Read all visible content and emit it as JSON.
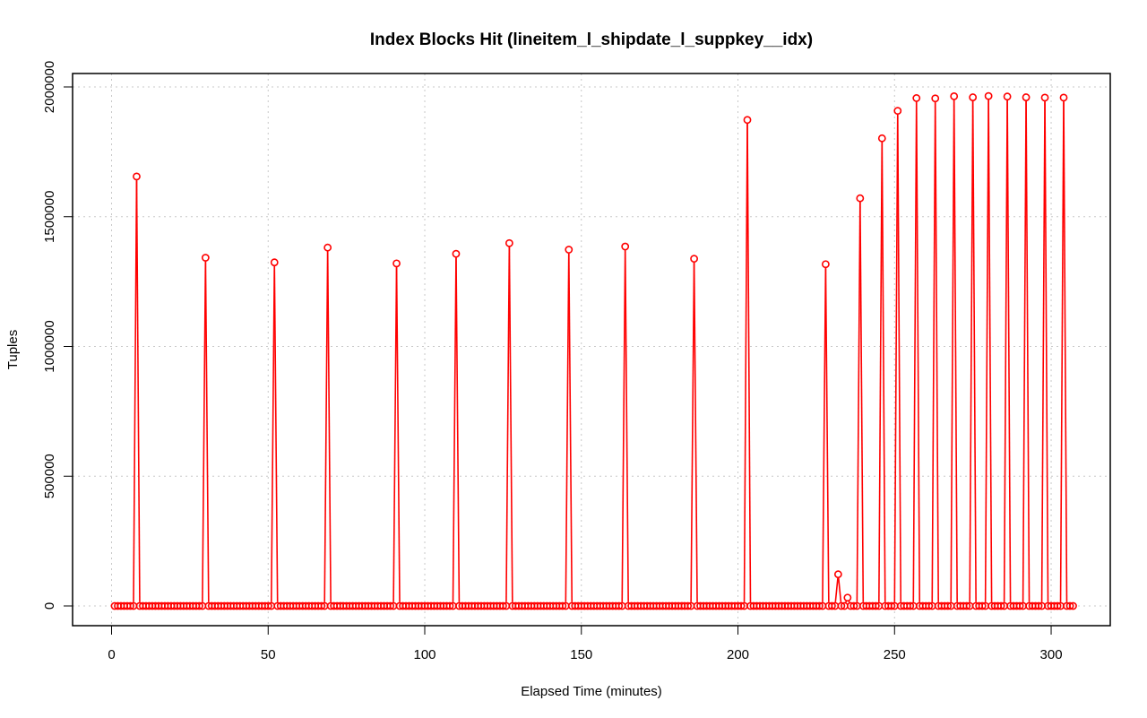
{
  "chart_data": {
    "type": "line",
    "title": "Index Blocks Hit (lineitem_l_shipdate_l_suppkey__idx)",
    "xlabel": "Elapsed Time (minutes)",
    "ylabel": "Tuples",
    "xlim": [
      1,
      307
    ],
    "ylim": [
      0,
      1970000
    ],
    "x_ticks": [
      0,
      50,
      100,
      150,
      200,
      250,
      300
    ],
    "y_ticks": [
      0,
      500000,
      1000000,
      1500000,
      2000000
    ],
    "grid": true,
    "line_color": "#ff0000",
    "marker": "open-circle",
    "x_range": [
      1,
      307
    ],
    "baseline": 0,
    "peaks": [
      {
        "x": 8,
        "y": 1655000
      },
      {
        "x": 30,
        "y": 1342000
      },
      {
        "x": 52,
        "y": 1324000
      },
      {
        "x": 69,
        "y": 1381000
      },
      {
        "x": 91,
        "y": 1320000
      },
      {
        "x": 110,
        "y": 1357000
      },
      {
        "x": 127,
        "y": 1398000
      },
      {
        "x": 146,
        "y": 1373000
      },
      {
        "x": 164,
        "y": 1385000
      },
      {
        "x": 186,
        "y": 1338000
      },
      {
        "x": 203,
        "y": 1873000
      },
      {
        "x": 228,
        "y": 1317000
      },
      {
        "x": 232,
        "y": 122000
      },
      {
        "x": 235,
        "y": 32000
      },
      {
        "x": 239,
        "y": 1571000
      },
      {
        "x": 246,
        "y": 1802000
      },
      {
        "x": 251,
        "y": 1908000
      },
      {
        "x": 257,
        "y": 1957000
      },
      {
        "x": 263,
        "y": 1956000
      },
      {
        "x": 269,
        "y": 1964000
      },
      {
        "x": 275,
        "y": 1960000
      },
      {
        "x": 280,
        "y": 1965000
      },
      {
        "x": 286,
        "y": 1963000
      },
      {
        "x": 292,
        "y": 1960000
      },
      {
        "x": 298,
        "y": 1959000
      },
      {
        "x": 304,
        "y": 1959000
      }
    ]
  }
}
